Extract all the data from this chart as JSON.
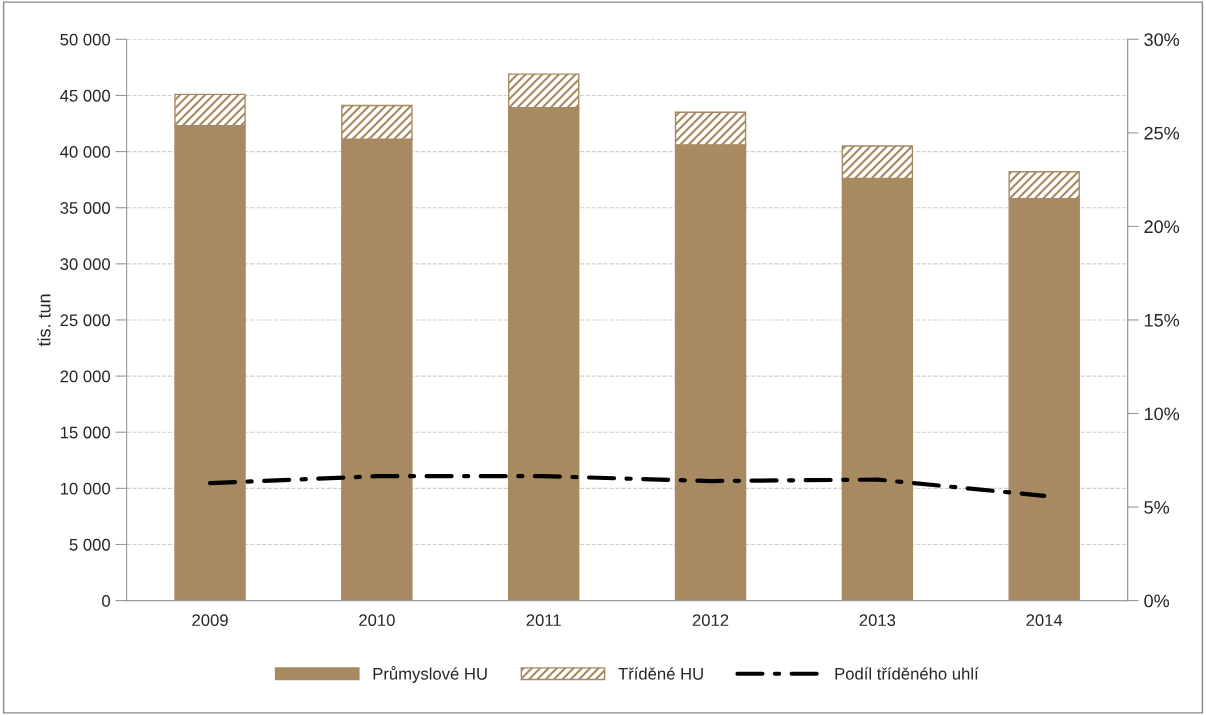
{
  "chart_data": {
    "type": "bar",
    "stacked": true,
    "ylabel": "tis. tun",
    "categories": [
      "2009",
      "2010",
      "2011",
      "2012",
      "2013",
      "2014"
    ],
    "series": [
      {
        "name": "Průmyslové HU",
        "color": "#a88a62",
        "values": [
          42300,
          41100,
          43900,
          40600,
          37600,
          35800
        ]
      },
      {
        "name": "Tříděné HU",
        "color": "#a88a62",
        "values": [
          2800,
          3000,
          3000,
          2900,
          2900,
          2400
        ]
      },
      {
        "name": "Podíl tříděného uhlí",
        "type": "line",
        "axis": "y2",
        "color": "#000000",
        "line_style": "dashdot",
        "values": [
          6.28,
          6.65,
          6.65,
          6.39,
          6.47,
          5.6
        ]
      }
    ],
    "ylim": [
      0,
      50000
    ],
    "yticks": [
      {
        "value": 0,
        "label": "0"
      },
      {
        "value": 5000,
        "label": "5 000"
      },
      {
        "value": 10000,
        "label": "10 000"
      },
      {
        "value": 15000,
        "label": "15 000"
      },
      {
        "value": 20000,
        "label": "20 000"
      },
      {
        "value": 25000,
        "label": "25 000"
      },
      {
        "value": 30000,
        "label": "30 000"
      },
      {
        "value": 35000,
        "label": "35 000"
      },
      {
        "value": 40000,
        "label": "40 000"
      },
      {
        "value": 45000,
        "label": "45 000"
      },
      {
        "value": 50000,
        "label": "50 000"
      }
    ],
    "y2lim": [
      0,
      30
    ],
    "y2ticks": [
      {
        "value": 0,
        "label": "0%"
      },
      {
        "value": 5,
        "label": "5%"
      },
      {
        "value": 10,
        "label": "10%"
      },
      {
        "value": 15,
        "label": "15%"
      },
      {
        "value": 20,
        "label": "20%"
      },
      {
        "value": 25,
        "label": "25%"
      },
      {
        "value": 30,
        "label": "30%"
      }
    ],
    "grid": "y",
    "legend": "bottom"
  }
}
